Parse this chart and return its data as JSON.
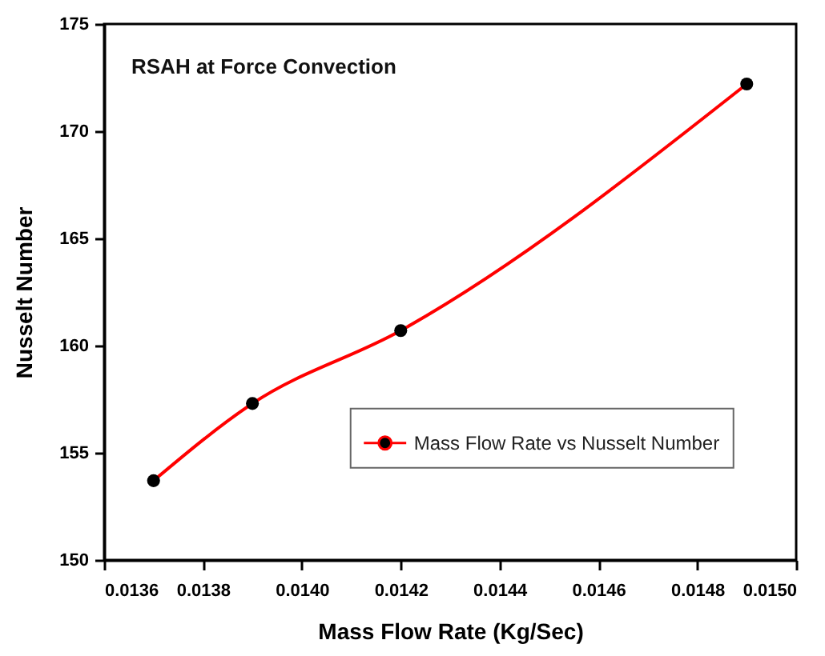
{
  "chart_data": {
    "type": "line",
    "title": "RSAH at Force Convection",
    "xlabel": "Mass Flow Rate (Kg/Sec)",
    "ylabel": "Nusselt Number",
    "x": [
      0.0137,
      0.0139,
      0.0142,
      0.0149
    ],
    "series": [
      {
        "name": "Mass Flow Rate vs Nusselt Number",
        "color": "#ff0000",
        "values": [
          153.7,
          157.3,
          160.7,
          172.2
        ]
      }
    ],
    "xlim": [
      0.0136,
      0.015
    ],
    "xticks": [
      {
        "value": 0.0136,
        "label": "0.0136"
      },
      {
        "value": 0.0138,
        "label": "0.0138"
      },
      {
        "value": 0.014,
        "label": "0.0140"
      },
      {
        "value": 0.0142,
        "label": "0.0142"
      },
      {
        "value": 0.0144,
        "label": "0.0144"
      },
      {
        "value": 0.0146,
        "label": "0.0146"
      },
      {
        "value": 0.0148,
        "label": "0.0148"
      },
      {
        "value": 0.015,
        "label": "0.0150"
      }
    ],
    "ylim": [
      150,
      175
    ],
    "yticks": [
      150,
      155,
      160,
      165,
      170,
      175
    ],
    "grid": false,
    "legend": "right",
    "marker": "circle",
    "line_style": "solid"
  }
}
